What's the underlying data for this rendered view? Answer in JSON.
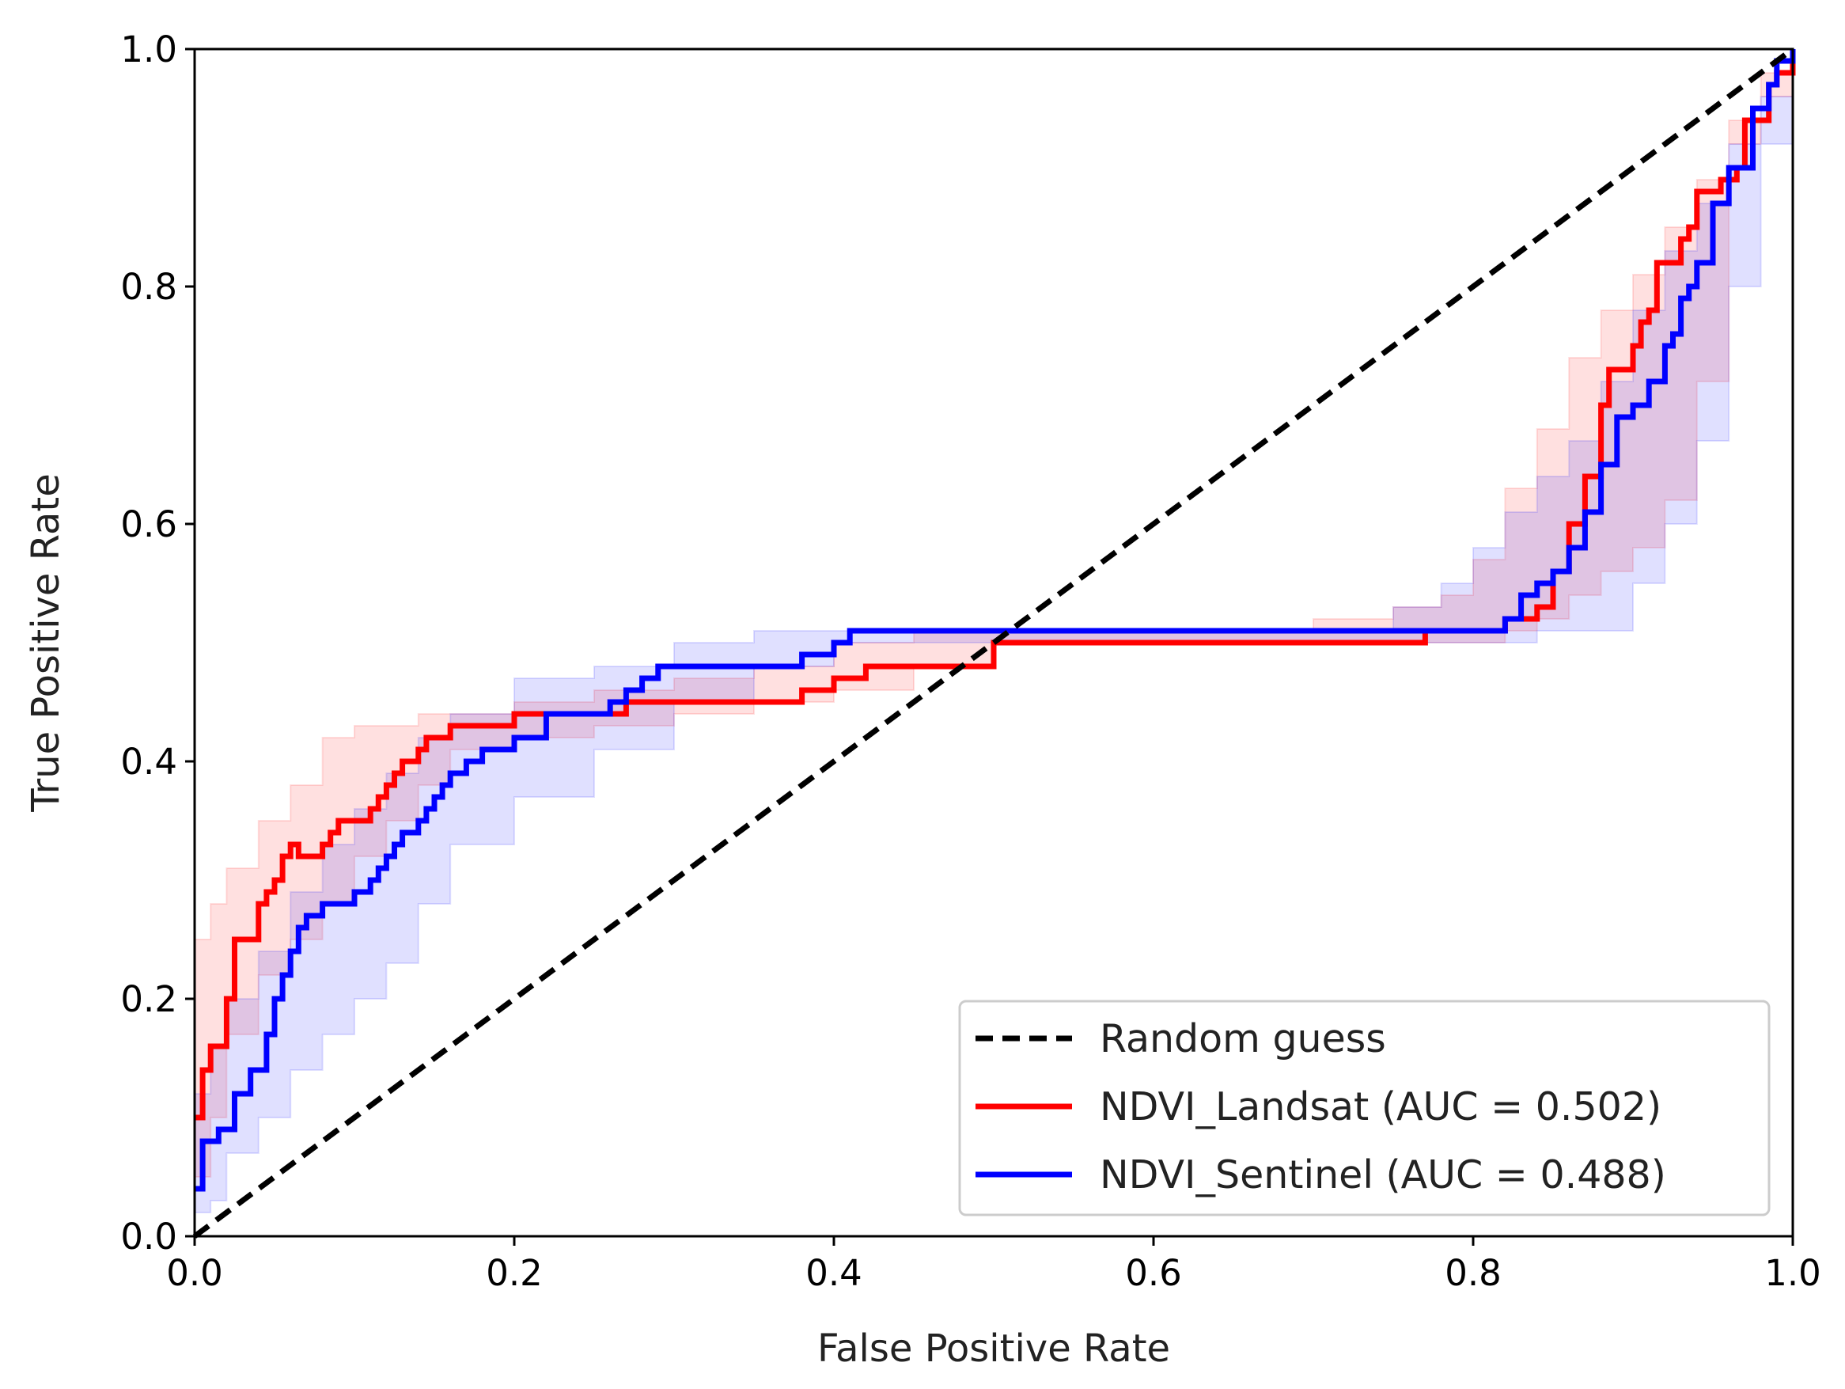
{
  "chart_data": {
    "type": "line",
    "title": "",
    "xlabel": "False Positive Rate",
    "ylabel": "True Positive Rate",
    "xlim": [
      0,
      1
    ],
    "ylim": [
      0,
      1
    ],
    "xticks": [
      "0.0",
      "0.2",
      "0.4",
      "0.6",
      "0.8",
      "1.0"
    ],
    "yticks": [
      "0.0",
      "0.2",
      "0.4",
      "0.6",
      "0.8",
      "1.0"
    ],
    "grid": false,
    "legend_position": "lower-right",
    "series": [
      {
        "name": "Random guess",
        "color": "#000000",
        "style": "dashed",
        "x": [
          0,
          1
        ],
        "y": [
          0,
          1
        ]
      },
      {
        "name": "NDVI_Landsat (AUC = 0.502)",
        "color": "#ff0000",
        "style": "step",
        "band_color": "#ff0000",
        "x": [
          0,
          0.005,
          0.01,
          0.02,
          0.025,
          0.04,
          0.045,
          0.05,
          0.055,
          0.06,
          0.065,
          0.08,
          0.085,
          0.09,
          0.095,
          0.11,
          0.115,
          0.12,
          0.125,
          0.13,
          0.14,
          0.145,
          0.16,
          0.2,
          0.22,
          0.27,
          0.3,
          0.38,
          0.4,
          0.4,
          0.42,
          0.5,
          0.5,
          0.77,
          0.82,
          0.84,
          0.85,
          0.86,
          0.87,
          0.88,
          0.885,
          0.9,
          0.905,
          0.91,
          0.915,
          0.93,
          0.935,
          0.94,
          0.955,
          0.965,
          0.97,
          0.985,
          0.99,
          1.0
        ],
        "y": [
          0.1,
          0.14,
          0.16,
          0.2,
          0.25,
          0.28,
          0.29,
          0.3,
          0.32,
          0.33,
          0.32,
          0.33,
          0.34,
          0.35,
          0.35,
          0.36,
          0.37,
          0.38,
          0.39,
          0.4,
          0.41,
          0.42,
          0.43,
          0.44,
          0.44,
          0.45,
          0.45,
          0.46,
          0.46,
          0.47,
          0.48,
          0.49,
          0.5,
          0.51,
          0.52,
          0.53,
          0.56,
          0.6,
          0.64,
          0.7,
          0.73,
          0.75,
          0.77,
          0.78,
          0.82,
          0.84,
          0.85,
          0.88,
          0.89,
          0.9,
          0.94,
          0.97,
          0.98,
          1.0
        ]
      },
      {
        "name": "NDVI_Sentinel (AUC = 0.488)",
        "color": "#0000ff",
        "style": "step",
        "band_color": "#0000ff",
        "x": [
          0,
          0.005,
          0.015,
          0.025,
          0.035,
          0.045,
          0.05,
          0.055,
          0.06,
          0.065,
          0.07,
          0.08,
          0.09,
          0.1,
          0.11,
          0.115,
          0.12,
          0.125,
          0.13,
          0.14,
          0.145,
          0.15,
          0.155,
          0.16,
          0.17,
          0.18,
          0.2,
          0.22,
          0.25,
          0.26,
          0.27,
          0.28,
          0.29,
          0.38,
          0.39,
          0.4,
          0.41,
          0.42,
          0.5,
          0.82,
          0.83,
          0.84,
          0.85,
          0.86,
          0.87,
          0.88,
          0.89,
          0.9,
          0.91,
          0.92,
          0.925,
          0.93,
          0.935,
          0.94,
          0.95,
          0.96,
          0.975,
          0.985,
          0.99,
          1.0
        ],
        "y": [
          0.04,
          0.08,
          0.09,
          0.12,
          0.14,
          0.17,
          0.2,
          0.22,
          0.24,
          0.26,
          0.27,
          0.28,
          0.28,
          0.29,
          0.3,
          0.31,
          0.32,
          0.33,
          0.34,
          0.35,
          0.36,
          0.37,
          0.38,
          0.39,
          0.4,
          0.41,
          0.42,
          0.44,
          0.44,
          0.45,
          0.46,
          0.47,
          0.48,
          0.49,
          0.49,
          0.5,
          0.51,
          0.51,
          0.51,
          0.52,
          0.54,
          0.55,
          0.56,
          0.58,
          0.61,
          0.65,
          0.69,
          0.7,
          0.72,
          0.75,
          0.76,
          0.79,
          0.8,
          0.82,
          0.87,
          0.9,
          0.95,
          0.97,
          0.99,
          1.0
        ]
      }
    ],
    "bands": {
      "NDVI_Landsat (AUC = 0.502)": {
        "x": [
          0,
          0.01,
          0.02,
          0.04,
          0.06,
          0.08,
          0.1,
          0.12,
          0.14,
          0.16,
          0.2,
          0.25,
          0.3,
          0.35,
          0.4,
          0.45,
          0.5,
          0.6,
          0.7,
          0.75,
          0.78,
          0.8,
          0.82,
          0.84,
          0.86,
          0.88,
          0.9,
          0.92,
          0.94,
          0.96,
          0.98,
          1.0
        ],
        "upper": [
          0.25,
          0.28,
          0.31,
          0.35,
          0.38,
          0.42,
          0.43,
          0.43,
          0.44,
          0.44,
          0.45,
          0.46,
          0.47,
          0.48,
          0.5,
          0.51,
          0.51,
          0.51,
          0.52,
          0.53,
          0.54,
          0.57,
          0.63,
          0.68,
          0.74,
          0.78,
          0.81,
          0.85,
          0.89,
          0.94,
          0.98,
          1.0
        ],
        "lower": [
          0.02,
          0.05,
          0.1,
          0.17,
          0.22,
          0.25,
          0.28,
          0.32,
          0.35,
          0.38,
          0.41,
          0.42,
          0.43,
          0.44,
          0.45,
          0.46,
          0.48,
          0.5,
          0.5,
          0.5,
          0.5,
          0.5,
          0.5,
          0.51,
          0.52,
          0.54,
          0.56,
          0.58,
          0.62,
          0.72,
          0.92,
          0.96
        ]
      },
      "NDVI_Sentinel (AUC = 0.488)": {
        "x": [
          0,
          0.01,
          0.02,
          0.04,
          0.06,
          0.08,
          0.1,
          0.12,
          0.14,
          0.16,
          0.2,
          0.25,
          0.3,
          0.35,
          0.4,
          0.45,
          0.5,
          0.6,
          0.7,
          0.75,
          0.78,
          0.8,
          0.82,
          0.84,
          0.86,
          0.88,
          0.9,
          0.92,
          0.94,
          0.96,
          0.98,
          1.0
        ],
        "upper": [
          0.12,
          0.16,
          0.2,
          0.24,
          0.29,
          0.33,
          0.36,
          0.39,
          0.42,
          0.44,
          0.47,
          0.48,
          0.5,
          0.51,
          0.51,
          0.51,
          0.51,
          0.51,
          0.51,
          0.53,
          0.55,
          0.58,
          0.61,
          0.64,
          0.67,
          0.72,
          0.78,
          0.83,
          0.87,
          0.92,
          0.96,
          1.0
        ],
        "lower": [
          0.0,
          0.02,
          0.03,
          0.07,
          0.1,
          0.14,
          0.17,
          0.2,
          0.23,
          0.28,
          0.33,
          0.37,
          0.41,
          0.45,
          0.48,
          0.5,
          0.5,
          0.5,
          0.5,
          0.5,
          0.5,
          0.5,
          0.5,
          0.5,
          0.51,
          0.51,
          0.51,
          0.55,
          0.6,
          0.67,
          0.8,
          0.92
        ]
      }
    }
  }
}
